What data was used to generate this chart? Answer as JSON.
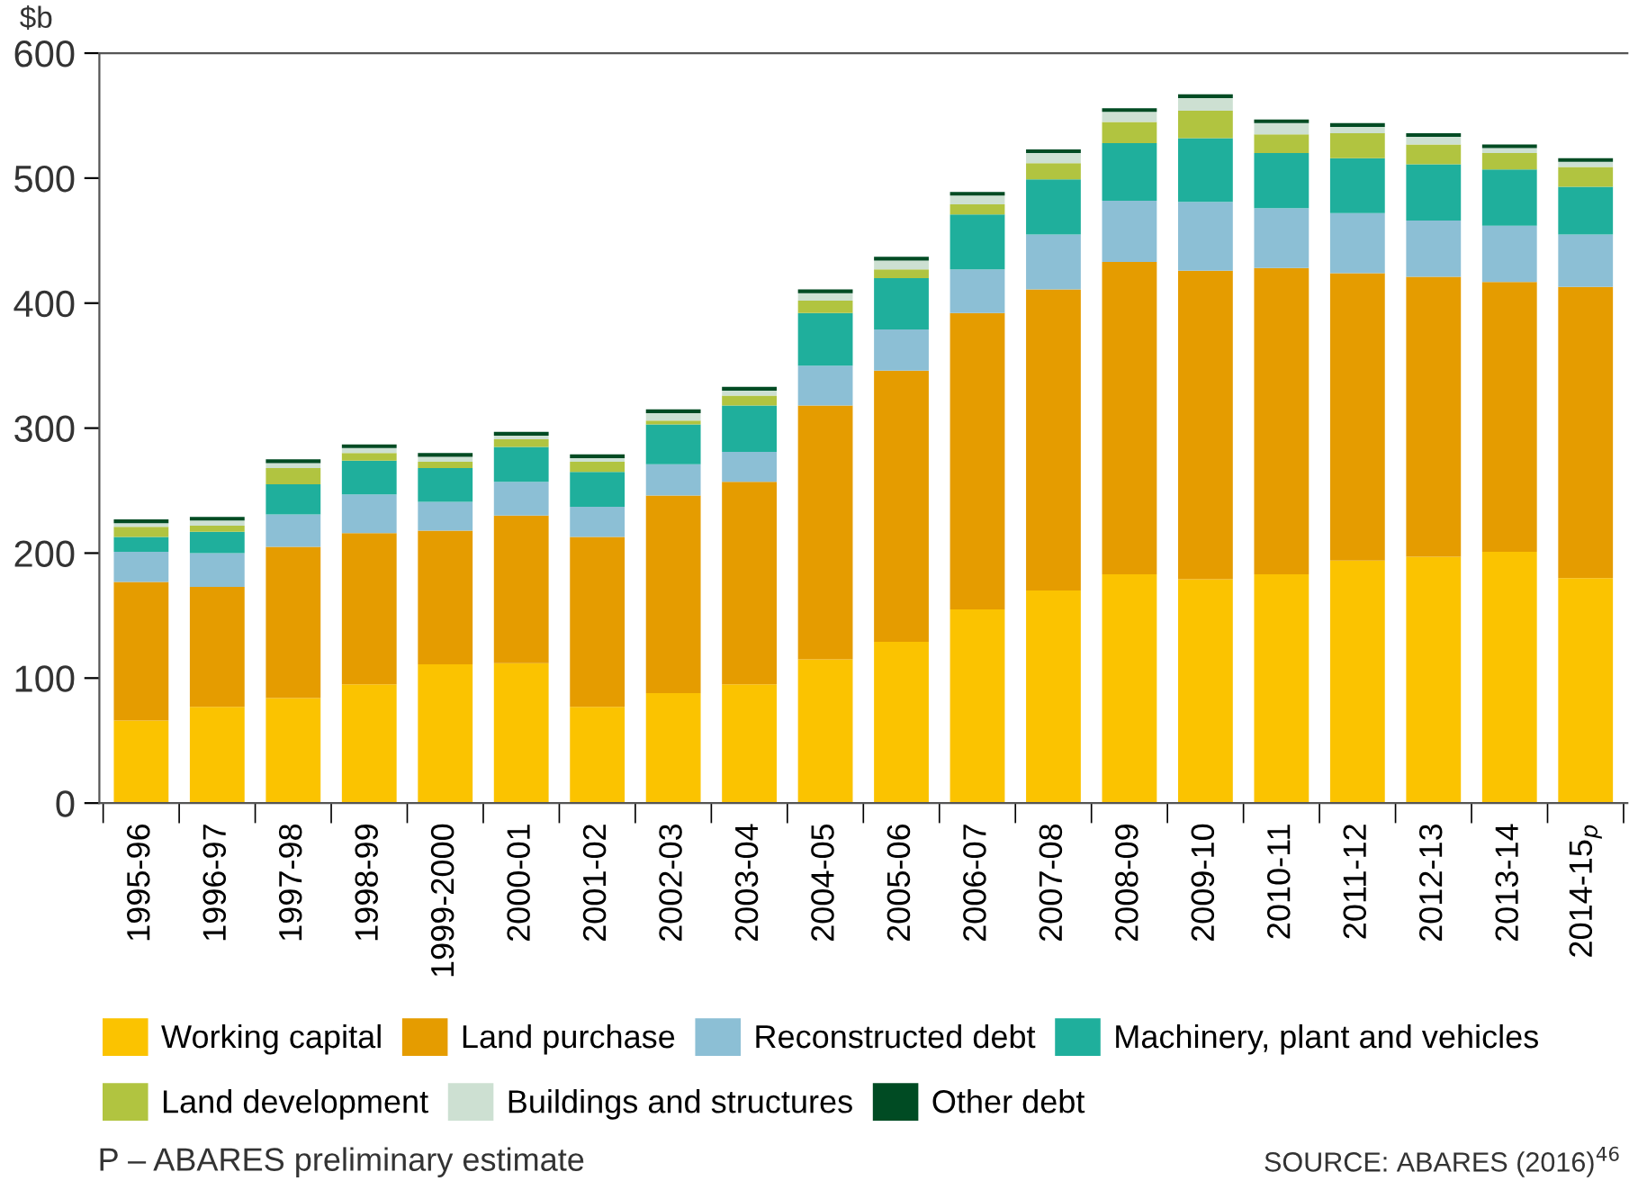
{
  "chart_data": {
    "type": "bar",
    "stacked": true,
    "ylabel": "$b",
    "categories": [
      "1995-96",
      "1996-97",
      "1997-98",
      "1998-99",
      "1999-2000",
      "2000-01",
      "2001-02",
      "2002-03",
      "2003-04",
      "2004-05",
      "2005-06",
      "2006-07",
      "2007-08",
      "2008-09",
      "2009-10",
      "2010-11",
      "2011-12",
      "2012-13",
      "2013-14",
      "2014-15$_{p}$"
    ],
    "series": [
      {
        "name": "Working capital",
        "color": "#fbc300",
        "values": [
          66,
          77,
          84,
          95,
          111,
          112,
          77,
          88,
          95,
          115,
          129,
          155,
          170,
          183,
          179,
          183,
          194,
          197,
          201,
          180
        ]
      },
      {
        "name": "Land purchase",
        "color": "#e59c00",
        "values": [
          111,
          96,
          121,
          121,
          107,
          118,
          136,
          158,
          162,
          203,
          217,
          237,
          241,
          250,
          247,
          245,
          230,
          224,
          216,
          233
        ]
      },
      {
        "name": "Reconstructed debt",
        "color": "#8cbfd5",
        "values": [
          24,
          27,
          26,
          31,
          23,
          27,
          24,
          25,
          24,
          32,
          33,
          35,
          44,
          49,
          55,
          48,
          48,
          45,
          45,
          42
        ]
      },
      {
        "name": "Machinery, plant and vehicles",
        "color": "#1faf9c",
        "values": [
          12,
          17,
          24,
          27,
          27,
          28,
          28,
          32,
          37,
          42,
          41,
          44,
          44,
          46,
          51,
          44,
          44,
          45,
          45,
          38
        ]
      },
      {
        "name": "Land development",
        "color": "#b1c440",
        "values": [
          8,
          5,
          13,
          6,
          5,
          6,
          8,
          3,
          8,
          10,
          7,
          8,
          13,
          17,
          22,
          15,
          20,
          16,
          13,
          16
        ]
      },
      {
        "name": "Buildings and structures",
        "color": "#cde0d2",
        "values": [
          3,
          4,
          4,
          4,
          4,
          3,
          3,
          6,
          4,
          6,
          7,
          7,
          8,
          8,
          10,
          9,
          5,
          6,
          4,
          4
        ]
      },
      {
        "name": "Other debt",
        "color": "#004b23",
        "values": [
          3,
          3,
          3,
          3,
          3,
          3,
          3,
          3,
          3,
          3,
          3,
          3,
          3,
          3,
          3,
          3,
          3,
          3,
          3,
          3
        ]
      }
    ],
    "ylim": [
      0,
      600
    ],
    "yticks": [
      0,
      100,
      200,
      300,
      400,
      500,
      600
    ],
    "grid": false,
    "legend": "bottom",
    "annotations": [
      "P – ABARES preliminary estimate",
      "SOURCE: ABARES (2016)$^{46}$"
    ]
  }
}
